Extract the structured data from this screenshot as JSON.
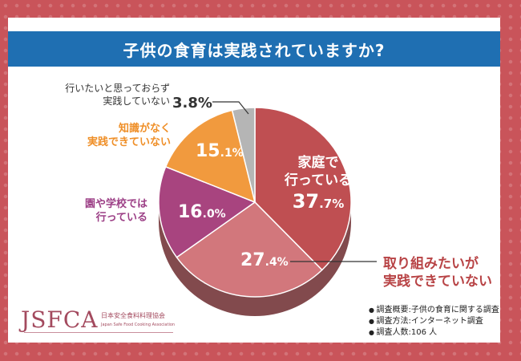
{
  "title": "子供の食育は実践されていますか?",
  "colors": {
    "background": "#c9545a",
    "title_bar": "#1f6fb2",
    "slice_home": "#bf4f52",
    "slice_notyet": "#d2777c",
    "slice_school": "#a8447f",
    "slice_noknow": "#f19a3e",
    "slice_want": "#b5b5b5"
  },
  "chart_data": {
    "type": "pie",
    "slices": [
      {
        "label": "家庭で行っている",
        "value": 37.7,
        "display": "37.7%"
      },
      {
        "label": "取り組みたいが実践できていない",
        "value": 27.4,
        "display": "27.4%"
      },
      {
        "label": "園や学校では行っている",
        "value": 16.0,
        "display": "16.0%"
      },
      {
        "label": "知識がなく実践できていない",
        "value": 15.1,
        "display": "15.1%"
      },
      {
        "label": "行いたいと思っておらず実践していない",
        "value": 3.8,
        "display": "3.8%"
      }
    ]
  },
  "labels": {
    "home_line1": "家庭で",
    "home_line2": "行っている",
    "home_pct_int": "37",
    "home_pct_dec": ".7%",
    "notyet_line1": "取り組みたいが",
    "notyet_line2": "実践できていない",
    "notyet_pct_int": "27",
    "notyet_pct_dec": ".4%",
    "school_line1": "園や学校では",
    "school_line2": "行っている",
    "school_pct_int": "16",
    "school_pct_dec": ".0%",
    "noknow_line1": "知識がなく",
    "noknow_line2": "実践できていない",
    "noknow_pct_int": "15",
    "noknow_pct_dec": ".1%",
    "want_line1": "行いたいと思っておらず",
    "want_line2": "実践していない",
    "want_pct": "3.8%"
  },
  "logo": {
    "mark": "JSFCA",
    "org_name": "日本安全食料料理協会",
    "org_name_en": "Japan Safe Food Cooking Association"
  },
  "notes": [
    "調査概要:子供の食育に関する調査",
    "調査方法:インターネット調査",
    "調査人数:106 人"
  ]
}
